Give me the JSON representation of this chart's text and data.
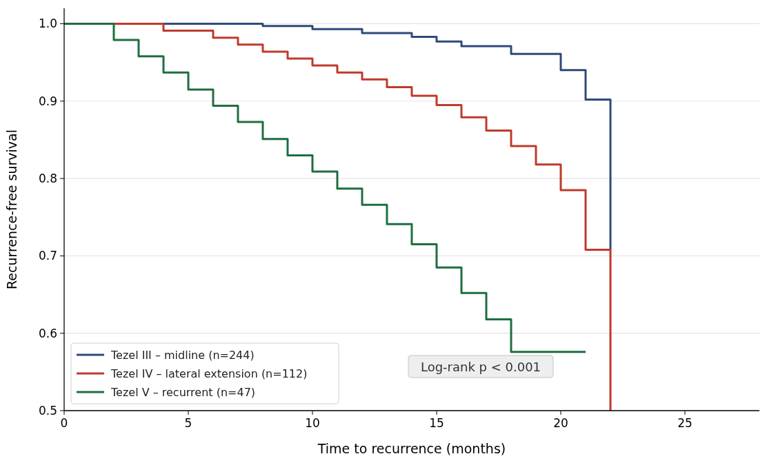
{
  "chart_data": {
    "type": "step",
    "xlabel": "Time to recurrence (months)",
    "ylabel": "Recurrence-free survival",
    "xlim": [
      0,
      28
    ],
    "xticks": [
      0,
      5,
      10,
      15,
      20,
      25
    ],
    "ylim": [
      0.5,
      1.02
    ],
    "yticks": [
      {
        "value": 0.5,
        "label": "0.5"
      },
      {
        "value": 0.6,
        "label": "0.6"
      },
      {
        "value": 0.7,
        "label": "0.7"
      },
      {
        "value": 0.8,
        "label": "0.8"
      },
      {
        "value": 0.9,
        "label": "0.9"
      },
      {
        "value": 1,
        "label": "1.0"
      }
    ],
    "grid": "y",
    "legend": "bottom left",
    "annotations": [
      "Log-rank p < 0.001"
    ],
    "series": [
      {
        "name": "Tezel III – midline (n=244)",
        "color": "#2e4a7a",
        "x": [
          0,
          8,
          10,
          12,
          14,
          15,
          16,
          18,
          20,
          21,
          22
        ],
        "values": [
          1,
          0.997,
          0.993,
          0.988,
          0.983,
          0.977,
          0.971,
          0.961,
          0.94,
          0.902,
          0.708
        ]
      },
      {
        "name": "Tezel IV – lateral extension (n=112)",
        "color": "#c0392b",
        "x": [
          0,
          4,
          6,
          7,
          8,
          9,
          10,
          11,
          12,
          13,
          14,
          15,
          16,
          17,
          18,
          19,
          20,
          21,
          22
        ],
        "values": [
          1,
          0.991,
          0.982,
          0.973,
          0.964,
          0.955,
          0.946,
          0.937,
          0.928,
          0.918,
          0.907,
          0.895,
          0.879,
          0.862,
          0.842,
          0.818,
          0.785,
          0.708,
          0.5
        ]
      },
      {
        "name": "Tezel V – recurrent (n=47)",
        "color": "#1e6e3e",
        "x": [
          0,
          2,
          3,
          4,
          5,
          6,
          7,
          8,
          9,
          10,
          11,
          12,
          13,
          14,
          15,
          16,
          17,
          18,
          21
        ],
        "values": [
          1,
          0.979,
          0.958,
          0.937,
          0.915,
          0.894,
          0.873,
          0.851,
          0.83,
          0.809,
          0.787,
          0.766,
          0.741,
          0.715,
          0.685,
          0.652,
          0.618,
          0.576,
          0.576
        ]
      }
    ]
  }
}
